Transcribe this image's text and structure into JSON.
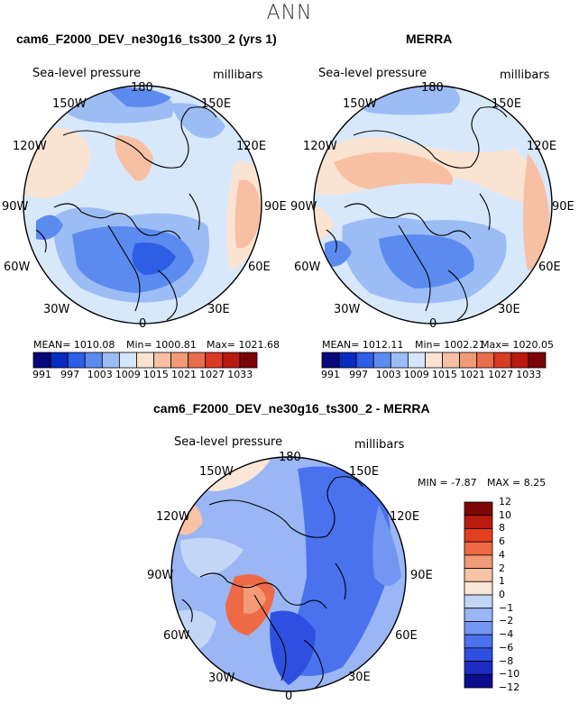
{
  "figure": {
    "season": "ANN"
  },
  "panels": [
    {
      "title": "cam6_F2000_DEV_ne30g16_ts300_2 (yrs 1)",
      "left_label": "Sea-level pressure",
      "right_label": "millibars",
      "stats": {
        "mean": "MEAN= 1010.08",
        "min": "Min= 1000.81",
        "max": "Max= 1021.68"
      }
    },
    {
      "title": "MERRA",
      "left_label": "Sea-level pressure",
      "right_label": "millibars",
      "stats": {
        "mean": "MEAN= 1012.11",
        "min": "Min= 1002.21",
        "max": "Max= 1020.05"
      }
    },
    {
      "title": "cam6_F2000_DEV_ne30g16_ts300_2 - MERRA",
      "left_label": "Sea-level pressure",
      "right_label": "millibars",
      "stats": {
        "min": "MIN =  -7.87",
        "max": "MAX =    8.25"
      }
    }
  ],
  "lon_labels": [
    "180",
    "150E",
    "120E",
    "90E",
    "60E",
    "30E",
    "0",
    "30W",
    "60W",
    "90W",
    "120W",
    "150W"
  ],
  "colorbar_abs": {
    "colors": [
      "#08087a",
      "#0a2bbf",
      "#2e5ee6",
      "#5c8bf0",
      "#9cbcf5",
      "#d5e6fb",
      "#fbe3d2",
      "#f7c0a3",
      "#f19a79",
      "#ea6e4d",
      "#d93b25",
      "#b81a10",
      "#7a0506"
    ],
    "labels": [
      "991",
      "997",
      "1003",
      "1009",
      "1015",
      "1021",
      "1027",
      "1033"
    ]
  },
  "colorbar_diff": {
    "colors": [
      "#0c0c8e",
      "#1c2cc2",
      "#2f4fe0",
      "#4a72ee",
      "#7296f2",
      "#9ab6f4",
      "#c3d6f7",
      "#fbe7d7",
      "#f8c3a5",
      "#f39a76",
      "#ee6a45",
      "#e2401f",
      "#bb1a0f",
      "#7d0707"
    ],
    "labels": [
      "12",
      "10",
      "8",
      "6",
      "4",
      "2",
      "1",
      "0",
      "−1",
      "−2",
      "−4",
      "−6",
      "−8",
      "−10",
      "−12"
    ]
  },
  "chart_data": [
    {
      "type": "heatmap",
      "title": "cam6_F2000_DEV_ne30g16_ts300_2 (yrs 1)",
      "variable": "Sea-level pressure",
      "units": "millibars",
      "projection": "north polar stereographic",
      "mean": 1010.08,
      "min": 1000.81,
      "max": 1021.68,
      "contour_levels": [
        991,
        994,
        997,
        1000,
        1003,
        1006,
        1009,
        1012,
        1015,
        1018,
        1021,
        1024,
        1027,
        1030,
        1033
      ]
    },
    {
      "type": "heatmap",
      "title": "MERRA",
      "variable": "Sea-level pressure",
      "units": "millibars",
      "projection": "north polar stereographic",
      "mean": 1012.11,
      "min": 1002.21,
      "max": 1020.05,
      "contour_levels": [
        991,
        994,
        997,
        1000,
        1003,
        1006,
        1009,
        1012,
        1015,
        1018,
        1021,
        1024,
        1027,
        1030,
        1033
      ]
    },
    {
      "type": "heatmap",
      "title": "cam6_F2000_DEV_ne30g16_ts300_2 - MERRA",
      "variable": "Sea-level pressure",
      "units": "millibars",
      "projection": "north polar stereographic",
      "min": -7.87,
      "max": 8.25,
      "contour_levels": [
        -12,
        -10,
        -8,
        -6,
        -4,
        -2,
        -1,
        0,
        1,
        2,
        4,
        6,
        8,
        10,
        12
      ]
    }
  ]
}
